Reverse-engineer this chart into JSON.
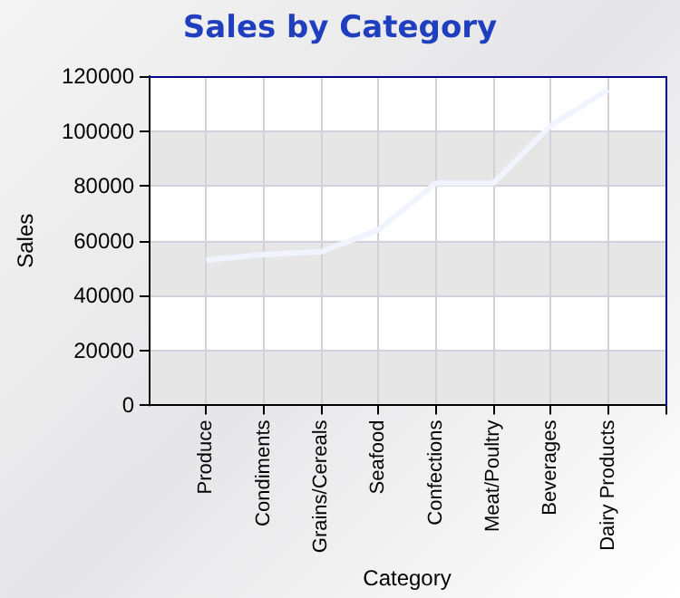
{
  "chart_data": {
    "type": "line",
    "title": "Sales by Category",
    "xlabel": "Category",
    "ylabel": "Sales",
    "categories": [
      "Produce",
      "Condiments",
      "Grains/Cereals",
      "Seafood",
      "Confections",
      "Meat/Poultry",
      "Beverages",
      "Dairy Products"
    ],
    "series": [
      {
        "color": "#f0f4ff",
        "values": [
          53000,
          55000,
          56000,
          64000,
          81000,
          81000,
          102000,
          115000
        ]
      }
    ],
    "ylim": [
      0,
      120000
    ],
    "yticks": [
      0,
      20000,
      40000,
      60000,
      80000,
      100000,
      120000
    ],
    "grid": true,
    "marker": "none",
    "line_style": "solid"
  }
}
